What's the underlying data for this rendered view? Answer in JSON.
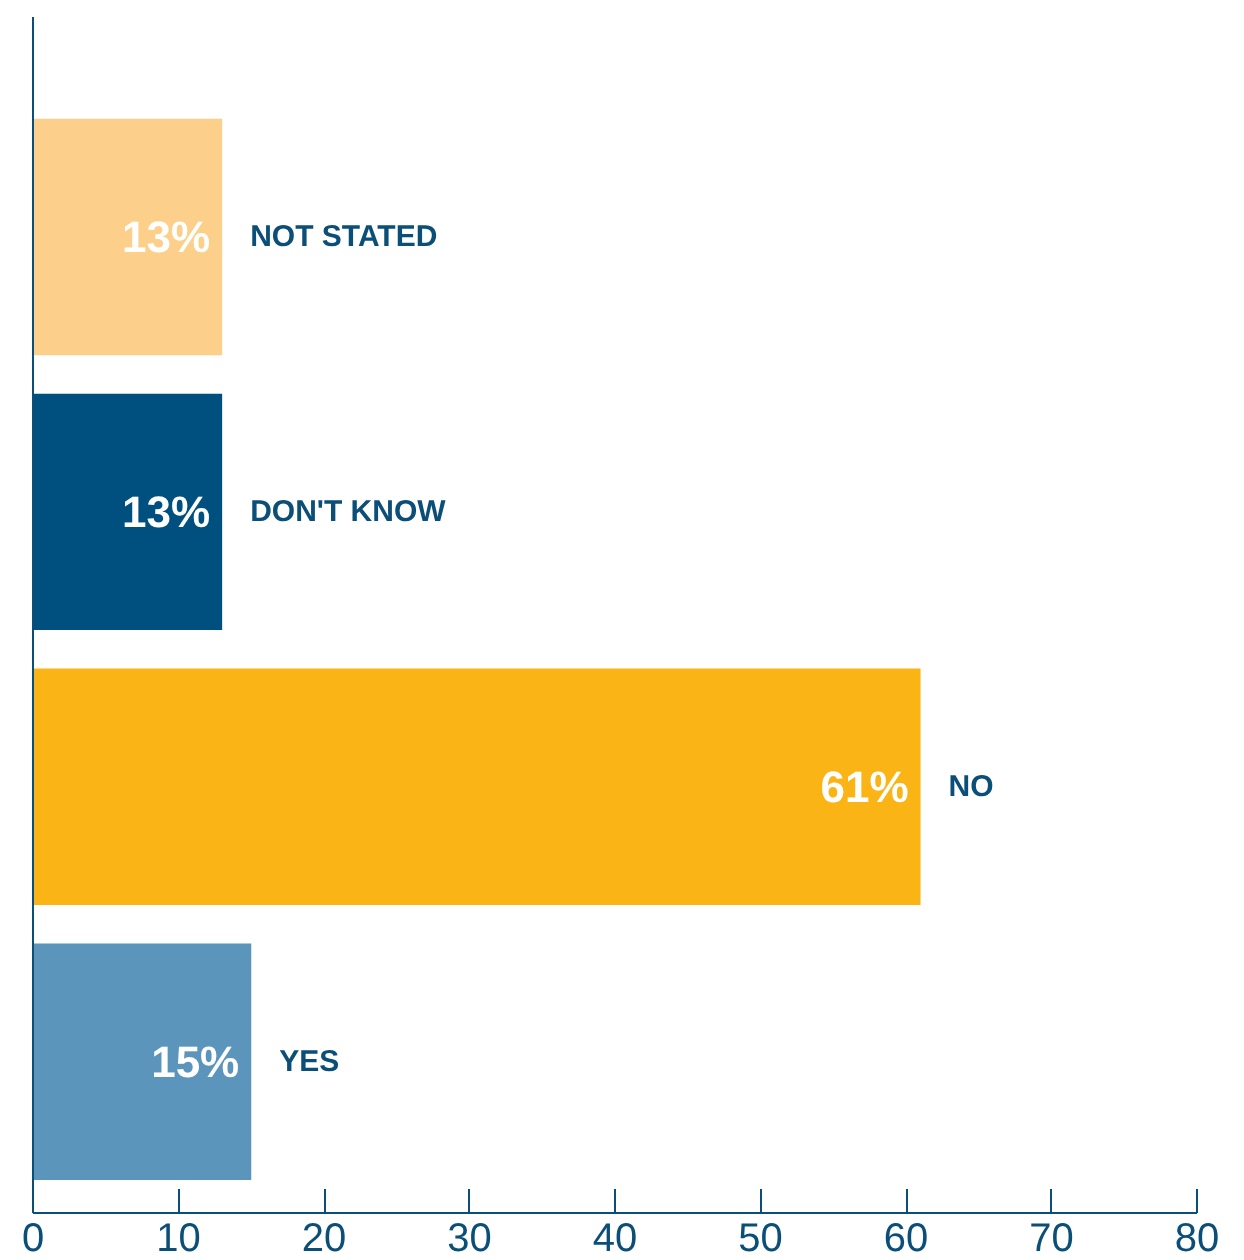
{
  "chart_data": {
    "type": "bar",
    "orientation": "horizontal",
    "categories": [
      "NOT STATED",
      "DON'T KNOW",
      "NO",
      "YES"
    ],
    "values": [
      13,
      13,
      61,
      15
    ],
    "colors": [
      "#fcd08a",
      "#00507f",
      "#fbb415",
      "#5b95bb"
    ],
    "value_labels": [
      "13%",
      "13%",
      "61%",
      "15%"
    ],
    "xlim": [
      0,
      80
    ],
    "xticks": [
      0,
      10,
      20,
      30,
      40,
      50,
      60,
      70,
      80
    ],
    "grid": false
  }
}
